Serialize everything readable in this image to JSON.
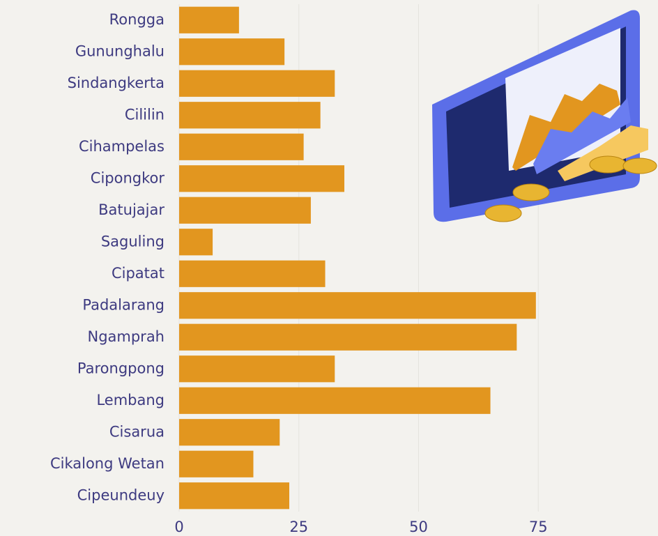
{
  "chart_data": {
    "type": "bar",
    "orientation": "horizontal",
    "categories": [
      "Rongga",
      "Gununghalu",
      "Sindangkerta",
      "Cililin",
      "Cihampelas",
      "Cipongkor",
      "Batujajar",
      "Saguling",
      "Cipatat",
      "Padalarang",
      "Ngamprah",
      "Parongpong",
      "Lembang",
      "Cisarua",
      "Cikalong Wetan",
      "Cipeundeuy"
    ],
    "values": [
      12.5,
      22,
      32.5,
      29.5,
      26,
      34.5,
      27.5,
      7,
      30.5,
      74.5,
      70.5,
      32.5,
      65,
      21,
      15.5,
      23
    ],
    "color": "#e2961f",
    "xlim": [
      0,
      100
    ],
    "xticks": [
      0,
      25,
      50,
      75
    ],
    "grid": true
  }
}
